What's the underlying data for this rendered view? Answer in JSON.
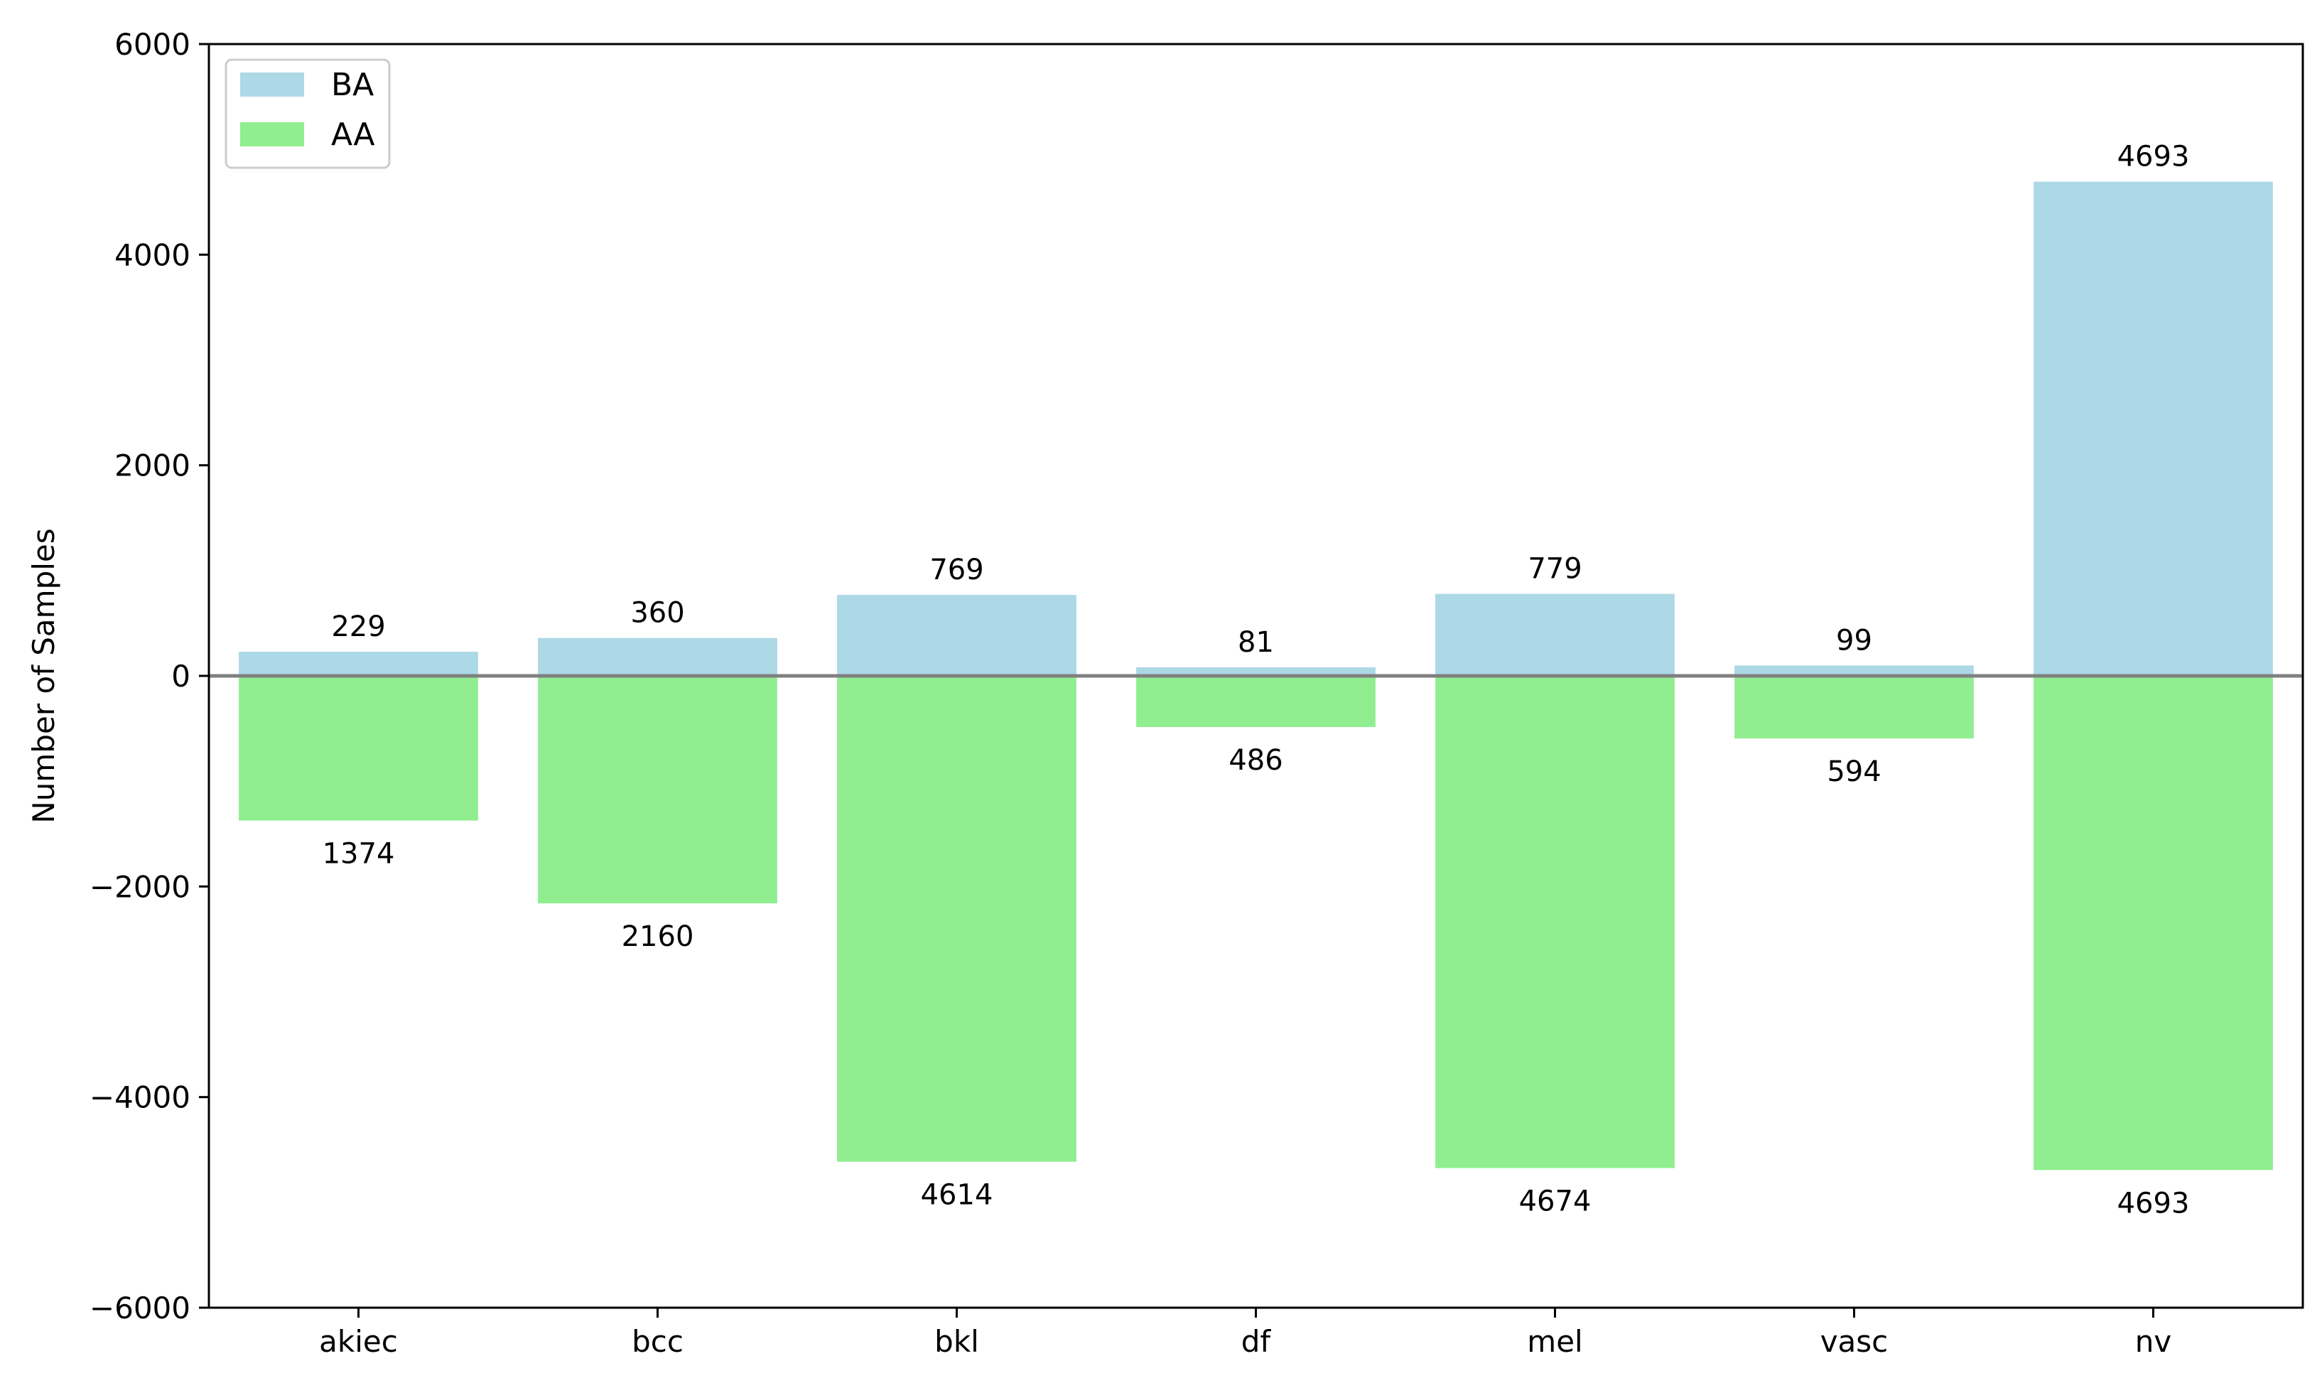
{
  "chart_data": {
    "type": "bar",
    "categories": [
      "akiec",
      "bcc",
      "bkl",
      "df",
      "mel",
      "vasc",
      "nv"
    ],
    "series": [
      {
        "name": "BA",
        "values": [
          229,
          360,
          769,
          81,
          779,
          99,
          4693
        ],
        "color": "#add8e6"
      },
      {
        "name": "AA",
        "values": [
          -1374,
          -2160,
          -4614,
          -486,
          -4674,
          -594,
          -4693
        ],
        "color": "#90ee90"
      }
    ],
    "data_labels": {
      "BA": [
        "229",
        "360",
        "769",
        "81",
        "779",
        "99",
        "4693"
      ],
      "AA": [
        "1374",
        "2160",
        "4614",
        "486",
        "4674",
        "594",
        "4693"
      ]
    },
    "title": "",
    "xlabel": "",
    "ylabel": "Number of Samples",
    "ylim": [
      -6000,
      6000
    ],
    "yticks": [
      6000,
      4000,
      2000,
      0,
      -2000,
      -4000,
      -6000
    ],
    "ytick_labels": [
      "6000",
      "4000",
      "2000",
      "0",
      "−2000",
      "−4000",
      "−6000"
    ],
    "grid": false,
    "legend_position": "top-left",
    "zero_line_color": "#808080"
  }
}
